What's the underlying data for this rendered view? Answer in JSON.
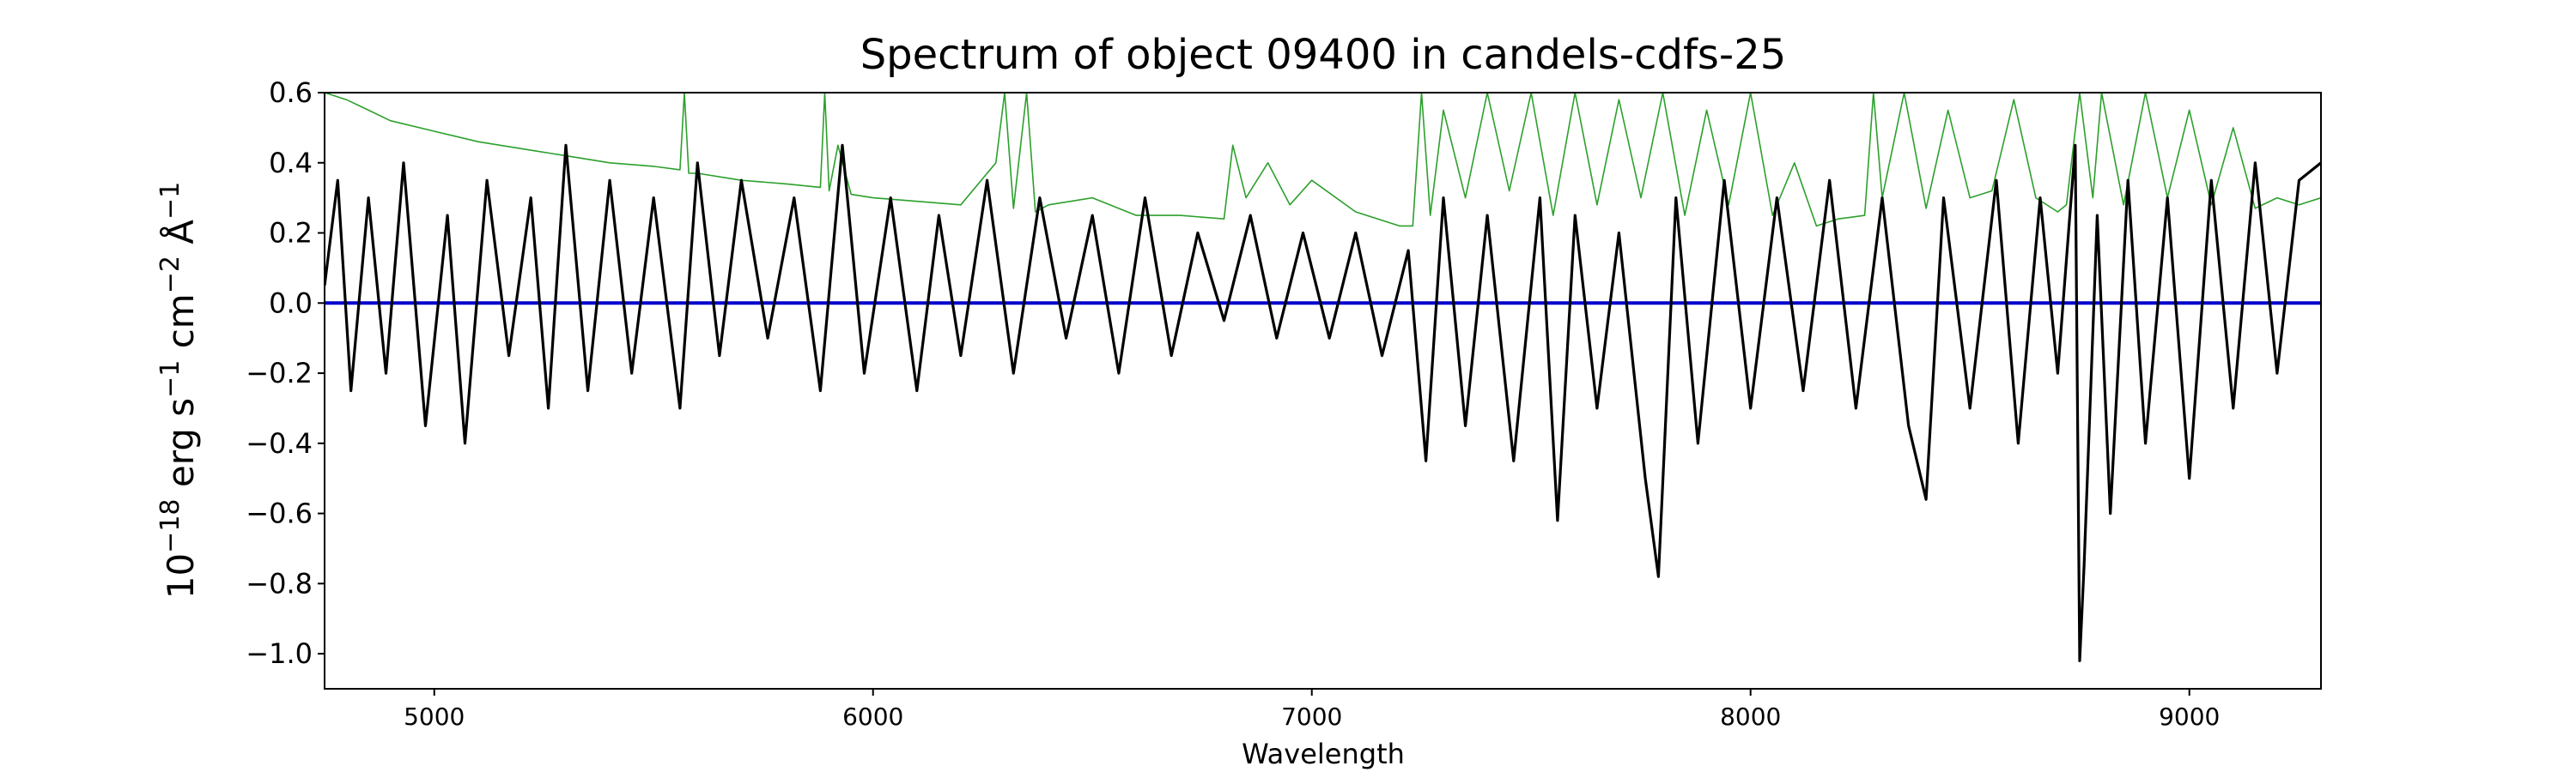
{
  "chart_data": {
    "type": "line",
    "title": "Spectrum of object 09400 in candels-cdfs-25",
    "xlabel": "Wavelength",
    "ylabel": {
      "base": "10",
      "base_exp": "−18",
      "unit1": " erg s",
      "unit1_exp": "−1",
      "unit2": " cm",
      "unit2_exp": "−2",
      "unit3": " Å",
      "unit3_exp": "−1"
    },
    "xlim": [
      4750,
      9300
    ],
    "ylim": [
      -1.1,
      0.6
    ],
    "x_ticks": [
      5000,
      6000,
      7000,
      8000,
      9000
    ],
    "x_tick_labels": [
      "5000",
      "6000",
      "7000",
      "8000",
      "9000"
    ],
    "y_ticks": [
      -1.0,
      -0.8,
      -0.6,
      -0.4,
      -0.2,
      0.0,
      0.2,
      0.4,
      0.6
    ],
    "y_tick_labels": [
      "−1.0",
      "−0.8",
      "−0.6",
      "−0.4",
      "−0.2",
      "0.0",
      "0.2",
      "0.4",
      "0.6"
    ],
    "grid": false,
    "colors": {
      "flux": "#000000",
      "error": "#2ca02c",
      "zero": "#0000cc"
    },
    "series": [
      {
        "key": "flux",
        "x": [
          4750,
          4780,
          4810,
          4850,
          4890,
          4930,
          4980,
          5030,
          5070,
          5120,
          5170,
          5220,
          5260,
          5300,
          5350,
          5400,
          5450,
          5500,
          5560,
          5600,
          5650,
          5700,
          5760,
          5820,
          5880,
          5930,
          5980,
          6040,
          6100,
          6150,
          6200,
          6260,
          6320,
          6380,
          6440,
          6500,
          6560,
          6620,
          6680,
          6740,
          6800,
          6860,
          6920,
          6980,
          7040,
          7100,
          7160,
          7220,
          7260,
          7300,
          7350,
          7400,
          7460,
          7520,
          7560,
          7600,
          7650,
          7700,
          7760,
          7790,
          7830,
          7880,
          7940,
          8000,
          8060,
          8120,
          8180,
          8240,
          8300,
          8360,
          8400,
          8440,
          8500,
          8560,
          8610,
          8660,
          8700,
          8740,
          8750,
          8760,
          8790,
          8820,
          8860,
          8900,
          8950,
          9000,
          9050,
          9100,
          9150,
          9200,
          9250,
          9300
        ],
        "y": [
          0.05,
          0.35,
          -0.25,
          0.3,
          -0.2,
          0.4,
          -0.35,
          0.25,
          -0.4,
          0.35,
          -0.15,
          0.3,
          -0.3,
          0.45,
          -0.25,
          0.35,
          -0.2,
          0.3,
          -0.3,
          0.4,
          -0.15,
          0.35,
          -0.1,
          0.3,
          -0.25,
          0.45,
          -0.2,
          0.3,
          -0.25,
          0.25,
          -0.15,
          0.35,
          -0.2,
          0.3,
          -0.1,
          0.25,
          -0.2,
          0.3,
          -0.15,
          0.2,
          -0.05,
          0.25,
          -0.1,
          0.2,
          -0.1,
          0.2,
          -0.15,
          0.15,
          -0.45,
          0.3,
          -0.35,
          0.25,
          -0.45,
          0.3,
          -0.62,
          0.25,
          -0.3,
          0.2,
          -0.5,
          -0.78,
          0.3,
          -0.4,
          0.35,
          -0.3,
          0.3,
          -0.25,
          0.35,
          -0.3,
          0.3,
          -0.35,
          -0.56,
          0.3,
          -0.3,
          0.35,
          -0.4,
          0.3,
          -0.2,
          0.45,
          -1.02,
          -0.75,
          0.25,
          -0.6,
          0.35,
          -0.4,
          0.3,
          -0.5,
          0.35,
          -0.3,
          0.4,
          -0.2,
          0.35,
          0.4
        ]
      },
      {
        "key": "error",
        "x": [
          4750,
          4800,
          4850,
          4900,
          5000,
          5100,
          5200,
          5300,
          5400,
          5500,
          5560,
          5570,
          5580,
          5600,
          5700,
          5800,
          5880,
          5890,
          5900,
          5920,
          5950,
          6000,
          6100,
          6200,
          6280,
          6300,
          6320,
          6350,
          6370,
          6400,
          6500,
          6600,
          6700,
          6800,
          6820,
          6850,
          6900,
          6950,
          7000,
          7100,
          7200,
          7230,
          7250,
          7270,
          7300,
          7350,
          7400,
          7450,
          7500,
          7550,
          7600,
          7650,
          7700,
          7750,
          7800,
          7850,
          7900,
          7950,
          8000,
          8050,
          8100,
          8150,
          8200,
          8260,
          8280,
          8300,
          8350,
          8400,
          8450,
          8500,
          8550,
          8600,
          8650,
          8700,
          8720,
          8750,
          8780,
          8800,
          8850,
          8900,
          8950,
          9000,
          9050,
          9100,
          9150,
          9200,
          9250,
          9300
        ],
        "y": [
          0.6,
          0.58,
          0.55,
          0.52,
          0.49,
          0.46,
          0.44,
          0.42,
          0.4,
          0.39,
          0.38,
          0.6,
          0.37,
          0.37,
          0.35,
          0.34,
          0.33,
          0.6,
          0.32,
          0.45,
          0.31,
          0.3,
          0.29,
          0.28,
          0.4,
          0.6,
          0.27,
          0.6,
          0.26,
          0.28,
          0.3,
          0.25,
          0.25,
          0.24,
          0.45,
          0.3,
          0.4,
          0.28,
          0.35,
          0.26,
          0.22,
          0.22,
          0.6,
          0.25,
          0.55,
          0.3,
          0.6,
          0.32,
          0.6,
          0.25,
          0.6,
          0.28,
          0.58,
          0.3,
          0.6,
          0.25,
          0.55,
          0.28,
          0.6,
          0.25,
          0.4,
          0.22,
          0.24,
          0.25,
          0.6,
          0.3,
          0.6,
          0.27,
          0.55,
          0.3,
          0.32,
          0.58,
          0.3,
          0.26,
          0.28,
          0.6,
          0.3,
          0.6,
          0.28,
          0.6,
          0.3,
          0.55,
          0.28,
          0.5,
          0.27,
          0.3,
          0.28,
          0.3
        ]
      },
      {
        "key": "zero",
        "x": [
          4750,
          9300
        ],
        "y": [
          0.0,
          0.0
        ]
      }
    ]
  }
}
